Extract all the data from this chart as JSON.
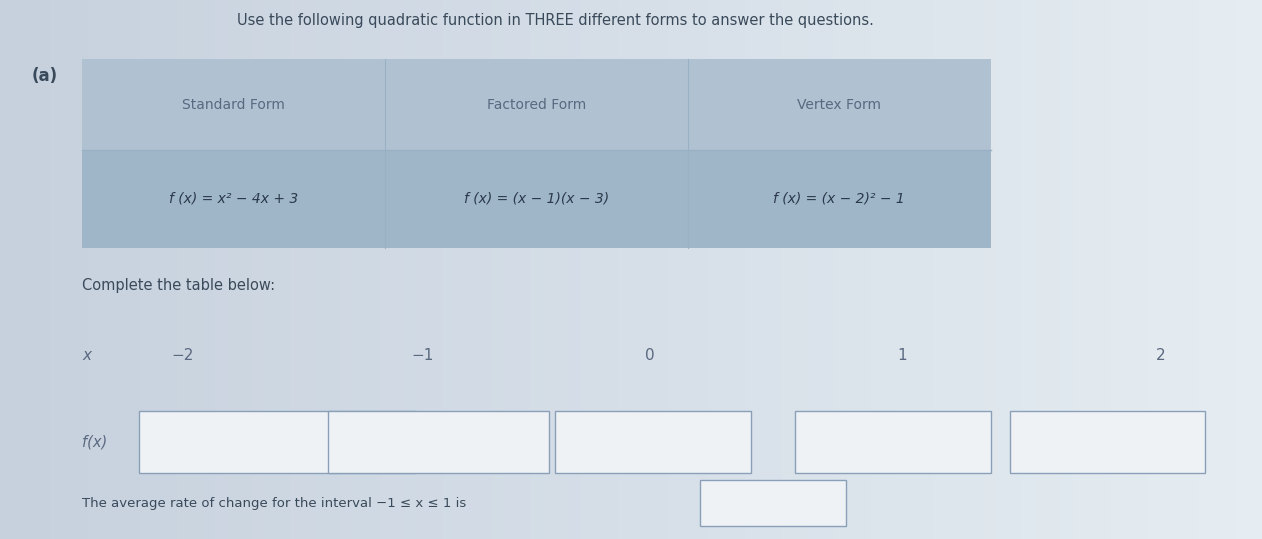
{
  "title_line": "Use the following quadratic function in THREE different forms to answer the questions.",
  "part_label": "(a)",
  "bg_gradient_left": "#c8d4de",
  "bg_gradient_right": "#e8edf2",
  "table_bg": "#b8cad8",
  "table_formula_bg": "#9fb8cc",
  "page_bg_top": "#d0d8e0",
  "page_bg_bottom": "#e4eaee",
  "table_header_row": [
    "Standard Form",
    "Factored Form",
    "Vertex Form"
  ],
  "table_formula_row": [
    "f (x) = x² − 4x + 3",
    "f (x) = (x − 1)(x − 3)",
    "f (x) = (x − 2)² − 1"
  ],
  "complete_table_text": "Complete the table below:",
  "x_label": "x",
  "fx_label": "f(x)",
  "x_values": [
    "−2",
    "−1",
    "0",
    "1",
    "2"
  ],
  "avg_rate_text": "The average rate of change for the interval −1 ≤ x ≤ 1 is",
  "text_color": "#5a6880",
  "formula_color": "#3a4a5a",
  "header_color": "#5a6880",
  "box_color": "#eef2f5",
  "box_border": "#8aa0b8",
  "divider_color": "#9ab0c4"
}
